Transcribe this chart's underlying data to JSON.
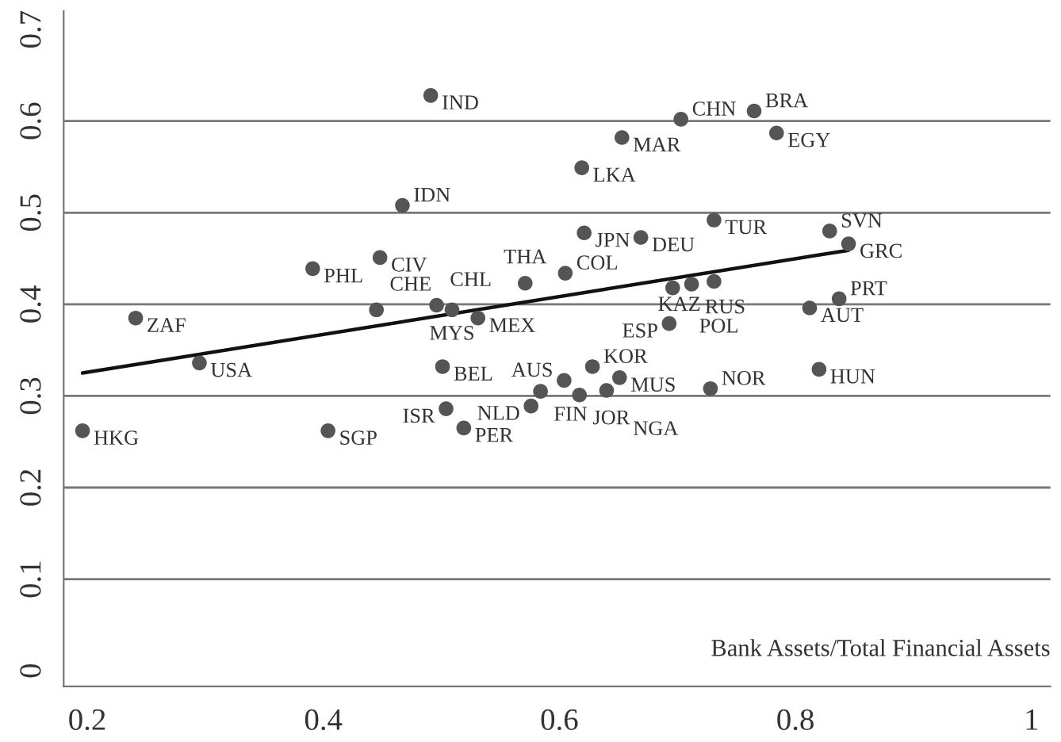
{
  "chart_data": {
    "type": "scatter",
    "xlabel": "Bank Assets/Total Financial Assets",
    "xlim": [
      0.18,
      1.016
    ],
    "ylim": [
      -0.017,
      0.72
    ],
    "xticks": [
      0.2,
      0.4,
      0.6,
      0.8,
      1
    ],
    "yticks": [
      0,
      0.1,
      0.2,
      0.3,
      0.4,
      0.5,
      0.6,
      0.7
    ],
    "grid": "y",
    "marker": "circle",
    "legend": false,
    "series": [
      {
        "color": "#555555",
        "x": [
          0.491,
          0.467,
          0.448,
          0.391,
          0.241,
          0.295,
          0.196,
          0.404,
          0.445,
          0.496,
          0.509,
          0.531,
          0.501,
          0.504,
          0.519,
          0.703,
          0.765,
          0.784,
          0.653,
          0.619,
          0.621,
          0.669,
          0.731,
          0.829,
          0.845,
          0.571,
          0.605,
          0.696,
          0.712,
          0.731,
          0.693,
          0.812,
          0.837,
          0.628,
          0.82,
          0.728,
          0.604,
          0.651,
          0.584,
          0.617,
          0.64,
          0.576
        ],
        "values": [
          0.628,
          0.508,
          0.451,
          0.439,
          0.385,
          0.336,
          0.262,
          0.262,
          0.394,
          0.399,
          0.394,
          0.385,
          0.332,
          0.286,
          0.265,
          0.602,
          0.611,
          0.587,
          0.582,
          0.549,
          0.478,
          0.473,
          0.492,
          0.48,
          0.466,
          0.423,
          0.434,
          0.418,
          0.422,
          0.425,
          0.379,
          0.396,
          0.406,
          0.332,
          0.329,
          0.308,
          0.317,
          0.32,
          0.305,
          0.301,
          0.306,
          0.289
        ]
      },
      {
        "type": "line",
        "color": "#111111",
        "marker": "none",
        "x": [
          0.196,
          0.845
        ],
        "values": [
          0.325,
          0.459
        ]
      }
    ],
    "annotations": [
      {
        "text": "IND",
        "x": 0.491,
        "y": 0.628
      },
      {
        "text": "IDN",
        "x": 0.467,
        "y": 0.508
      },
      {
        "text": "CIV",
        "x": 0.448,
        "y": 0.451
      },
      {
        "text": "PHL",
        "x": 0.391,
        "y": 0.439
      },
      {
        "text": "ZAF",
        "x": 0.241,
        "y": 0.385
      },
      {
        "text": "USA",
        "x": 0.295,
        "y": 0.336
      },
      {
        "text": "HKG",
        "x": 0.196,
        "y": 0.262
      },
      {
        "text": "SGP",
        "x": 0.404,
        "y": 0.262
      },
      {
        "text": "CHE",
        "x": 0.445,
        "y": 0.394
      },
      {
        "text": "CHL",
        "x": 0.496,
        "y": 0.399
      },
      {
        "text": "MYS",
        "x": 0.509,
        "y": 0.394
      },
      {
        "text": "MEX",
        "x": 0.531,
        "y": 0.385
      },
      {
        "text": "BEL",
        "x": 0.501,
        "y": 0.332
      },
      {
        "text": "ISR",
        "x": 0.504,
        "y": 0.286
      },
      {
        "text": "PER",
        "x": 0.519,
        "y": 0.265
      },
      {
        "text": "CHN",
        "x": 0.703,
        "y": 0.602
      },
      {
        "text": "BRA",
        "x": 0.765,
        "y": 0.611
      },
      {
        "text": "EGY",
        "x": 0.784,
        "y": 0.587
      },
      {
        "text": "MAR",
        "x": 0.653,
        "y": 0.582
      },
      {
        "text": "LKA",
        "x": 0.619,
        "y": 0.549
      },
      {
        "text": "JPN",
        "x": 0.621,
        "y": 0.478
      },
      {
        "text": "DEU",
        "x": 0.669,
        "y": 0.473
      },
      {
        "text": "TUR",
        "x": 0.731,
        "y": 0.492
      },
      {
        "text": "SVN",
        "x": 0.829,
        "y": 0.48
      },
      {
        "text": "GRC",
        "x": 0.845,
        "y": 0.466
      },
      {
        "text": "THA",
        "x": 0.571,
        "y": 0.423
      },
      {
        "text": "COL",
        "x": 0.605,
        "y": 0.434
      },
      {
        "text": "POL",
        "x": 0.696,
        "y": 0.418
      },
      {
        "text": "RUS",
        "x": 0.712,
        "y": 0.422
      },
      {
        "text": "KAZ",
        "x": 0.731,
        "y": 0.425
      },
      {
        "text": "ESP",
        "x": 0.693,
        "y": 0.379
      },
      {
        "text": "AUT",
        "x": 0.812,
        "y": 0.396
      },
      {
        "text": "PRT",
        "x": 0.837,
        "y": 0.406
      },
      {
        "text": "KOR",
        "x": 0.628,
        "y": 0.332
      },
      {
        "text": "HUN",
        "x": 0.82,
        "y": 0.329
      },
      {
        "text": "NOR",
        "x": 0.728,
        "y": 0.308
      },
      {
        "text": "AUS",
        "x": 0.604,
        "y": 0.317
      },
      {
        "text": "MUS",
        "x": 0.651,
        "y": 0.32
      },
      {
        "text": "FIN",
        "x": 0.584,
        "y": 0.305
      },
      {
        "text": "JOR",
        "x": 0.617,
        "y": 0.301
      },
      {
        "text": "NGA",
        "x": 0.64,
        "y": 0.306
      },
      {
        "text": "NLD",
        "x": 0.576,
        "y": 0.289
      }
    ]
  }
}
